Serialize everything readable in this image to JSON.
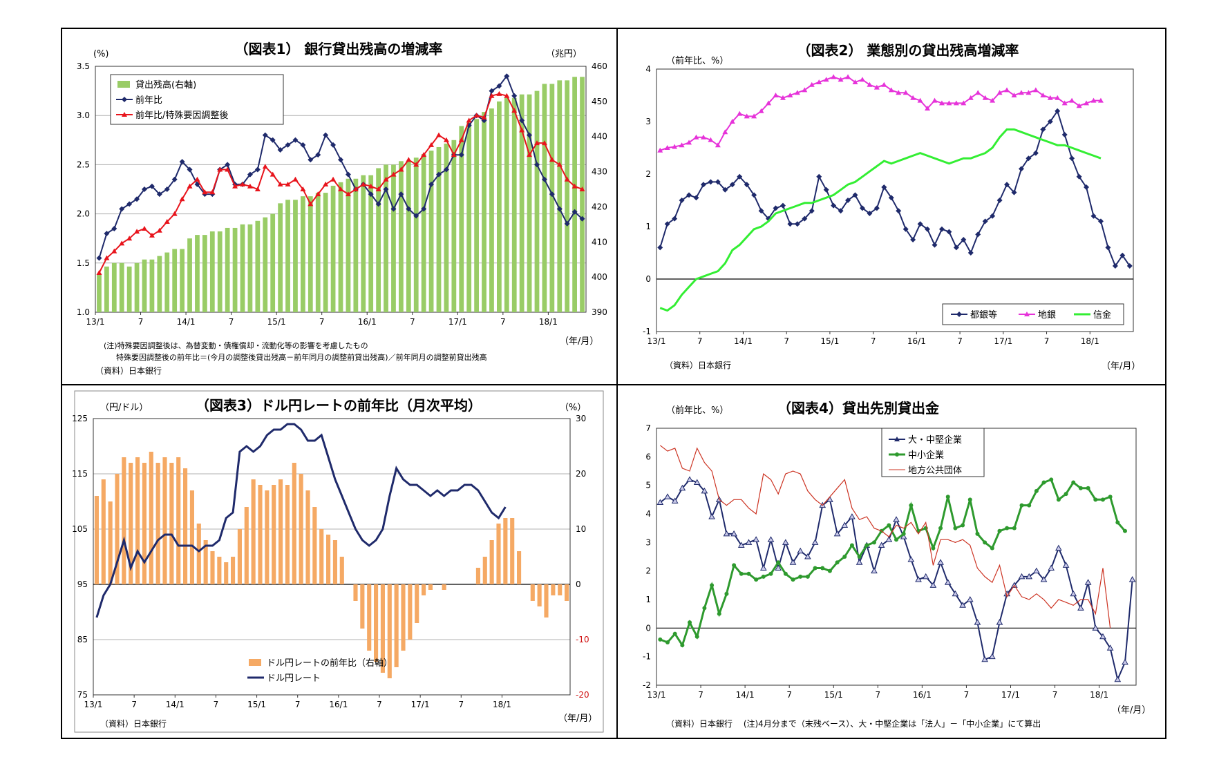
{
  "chart_data": [
    {
      "type": "bar+line",
      "title": "（図表1） 銀行貸出残高の増減率",
      "left_unit": "(%)",
      "right_unit": "（兆円）",
      "x_unit": "（年/月）",
      "ylim_left": [
        1.0,
        3.5
      ],
      "ylim_right": [
        390,
        460
      ],
      "yticks_left": [
        "1.0",
        "1.5",
        "2.0",
        "2.5",
        "3.0",
        "3.5"
      ],
      "yticks_right": [
        "390",
        "400",
        "410",
        "420",
        "430",
        "440",
        "450",
        "460"
      ],
      "xtick_labels": [
        "13/1",
        "7",
        "14/1",
        "7",
        "15/1",
        "7",
        "16/1",
        "7",
        "17/1",
        "7",
        "18/1"
      ],
      "series": [
        {
          "name": "貸出残高(右軸)",
          "kind": "bar",
          "axis": "right",
          "color": "#99cc66",
          "values": [
            401,
            403,
            404,
            404,
            403,
            404,
            405,
            405,
            406,
            407,
            408,
            408,
            411,
            412,
            412,
            413,
            413,
            414,
            414,
            415,
            415,
            416,
            417,
            418,
            421,
            422,
            422,
            423,
            423,
            424,
            424,
            426,
            427,
            428,
            428,
            429,
            429,
            431,
            432,
            432,
            433,
            433,
            434,
            435,
            436,
            437,
            438,
            439,
            443,
            444,
            445,
            447,
            448,
            450,
            451,
            451,
            452,
            452,
            453,
            455,
            455,
            456,
            456,
            457,
            457
          ],
          "note": "approximated from figure"
        },
        {
          "name": "前年比",
          "kind": "line",
          "axis": "left",
          "color": "#1f2a6b",
          "marker": "diamond",
          "values": [
            1.55,
            1.8,
            1.85,
            2.05,
            2.1,
            2.15,
            2.25,
            2.28,
            2.2,
            2.25,
            2.35,
            2.53,
            2.45,
            2.3,
            2.2,
            2.2,
            2.45,
            2.5,
            2.3,
            2.3,
            2.4,
            2.45,
            2.8,
            2.75,
            2.65,
            2.7,
            2.75,
            2.7,
            2.55,
            2.6,
            2.8,
            2.7,
            2.55,
            2.4,
            2.25,
            2.3,
            2.2,
            2.1,
            2.25,
            2.05,
            2.2,
            2.05,
            1.98,
            2.05,
            2.3,
            2.4,
            2.45,
            2.6,
            2.6,
            2.9,
            3.0,
            2.95,
            3.25,
            3.3,
            3.4,
            3.2,
            2.95,
            2.8,
            2.5,
            2.35,
            2.2,
            2.05,
            1.9,
            2.02,
            1.95
          ]
        },
        {
          "name": "前年比/特殊要因調整後",
          "kind": "line",
          "axis": "left",
          "color": "#e8141c",
          "marker": "triangle",
          "values": [
            1.4,
            1.55,
            1.62,
            1.7,
            1.75,
            1.82,
            1.85,
            1.78,
            1.83,
            1.92,
            2.0,
            2.15,
            2.28,
            2.35,
            2.22,
            2.22,
            2.45,
            2.45,
            2.28,
            2.3,
            2.28,
            2.25,
            2.48,
            2.4,
            2.3,
            2.3,
            2.35,
            2.25,
            2.1,
            2.2,
            2.3,
            2.35,
            2.25,
            2.2,
            2.25,
            2.3,
            2.28,
            2.25,
            2.35,
            2.4,
            2.45,
            2.55,
            2.5,
            2.6,
            2.7,
            2.8,
            2.75,
            2.6,
            2.75,
            2.95,
            3.0,
            2.98,
            3.2,
            3.22,
            3.2,
            3.05,
            2.85,
            2.6,
            2.72,
            2.72,
            2.55,
            2.5,
            2.35,
            2.28,
            2.25
          ]
        }
      ],
      "notes": [
        "(注)特殊要因調整後は、為替変動・債権償却・流動化等の影響を考慮したもの",
        "特殊要因調整後の前年比＝(今月の調整後貸出残高－前年同月の調整前貸出残高)／前年同月の調整前貸出残高",
        "（資料）日本銀行"
      ]
    },
    {
      "type": "line",
      "title": "（図表2） 業態別の貸出残高増減率",
      "y_unit": "（前年比、%）",
      "x_unit": "（年/月）",
      "source": "（資料）日本銀行",
      "ylim": [
        -1,
        4
      ],
      "yticks": [
        "-1",
        "0",
        "1",
        "2",
        "3",
        "4"
      ],
      "xtick_labels": [
        "13/1",
        "7",
        "14/1",
        "7",
        "15/1",
        "7",
        "16/1",
        "7",
        "17/1",
        "7",
        "18/1"
      ],
      "series": [
        {
          "name": "都銀等",
          "color": "#1f2a6b",
          "marker": "diamond",
          "values": [
            0.6,
            1.05,
            1.15,
            1.5,
            1.6,
            1.55,
            1.8,
            1.85,
            1.85,
            1.7,
            1.8,
            1.95,
            1.8,
            1.6,
            1.3,
            1.15,
            1.35,
            1.4,
            1.05,
            1.05,
            1.15,
            1.3,
            1.95,
            1.7,
            1.4,
            1.3,
            1.5,
            1.6,
            1.35,
            1.25,
            1.35,
            1.75,
            1.55,
            1.3,
            0.95,
            0.75,
            1.05,
            0.95,
            0.65,
            0.95,
            0.9,
            0.6,
            0.75,
            0.5,
            0.85,
            1.1,
            1.2,
            1.5,
            1.8,
            1.65,
            2.1,
            2.3,
            2.4,
            2.85,
            3.0,
            3.2,
            2.75,
            2.3,
            1.95,
            1.75,
            1.2,
            1.1,
            0.6,
            0.25,
            0.45,
            0.25
          ]
        },
        {
          "name": "地銀",
          "color": "#e633d9",
          "marker": "triangle",
          "values": [
            2.45,
            2.5,
            2.52,
            2.55,
            2.6,
            2.7,
            2.7,
            2.65,
            2.55,
            2.8,
            3.0,
            3.15,
            3.1,
            3.1,
            3.2,
            3.35,
            3.5,
            3.45,
            3.5,
            3.55,
            3.6,
            3.7,
            3.75,
            3.8,
            3.85,
            3.8,
            3.85,
            3.75,
            3.8,
            3.7,
            3.65,
            3.7,
            3.6,
            3.55,
            3.55,
            3.45,
            3.4,
            3.25,
            3.4,
            3.35,
            3.35,
            3.35,
            3.35,
            3.45,
            3.55,
            3.45,
            3.4,
            3.55,
            3.6,
            3.5,
            3.55,
            3.55,
            3.6,
            3.5,
            3.45,
            3.45,
            3.35,
            3.4,
            3.3,
            3.35,
            3.4,
            3.4
          ]
        },
        {
          "name": "信金",
          "color": "#33ee33",
          "marker": "none",
          "values": [
            -0.55,
            -0.6,
            -0.5,
            -0.3,
            -0.15,
            0.0,
            0.05,
            0.1,
            0.15,
            0.3,
            0.55,
            0.65,
            0.8,
            0.95,
            1.0,
            1.1,
            1.25,
            1.3,
            1.35,
            1.4,
            1.45,
            1.45,
            1.5,
            1.55,
            1.6,
            1.7,
            1.8,
            1.85,
            1.95,
            2.05,
            2.15,
            2.25,
            2.2,
            2.25,
            2.3,
            2.35,
            2.4,
            2.35,
            2.3,
            2.25,
            2.2,
            2.25,
            2.3,
            2.3,
            2.35,
            2.4,
            2.5,
            2.7,
            2.85,
            2.85,
            2.8,
            2.75,
            2.7,
            2.65,
            2.6,
            2.55,
            2.55,
            2.5,
            2.45,
            2.4,
            2.35,
            2.3
          ]
        }
      ]
    },
    {
      "type": "bar+line",
      "title": "（図表3）ドル円レートの前年比（月次平均）",
      "left_unit": "（円/ドル）",
      "right_unit": "（%）",
      "x_unit": "（年/月）",
      "source": "（資料）日本銀行",
      "ylim_left": [
        75,
        125
      ],
      "ylim_right": [
        -20,
        30
      ],
      "yticks_left": [
        "75",
        "85",
        "95",
        "105",
        "115",
        "125"
      ],
      "yticks_right": [
        "-20",
        "-10",
        "0",
        "10",
        "20",
        "30"
      ],
      "xtick_labels": [
        "13/1",
        "7",
        "14/1",
        "7",
        "15/1",
        "7",
        "16/1",
        "7",
        "17/1",
        "7",
        "18/1"
      ],
      "series": [
        {
          "name": "ドル円レートの前年比（右軸）",
          "kind": "bar",
          "axis": "right",
          "color": "#f5a964",
          "values": [
            16,
            19,
            15,
            20,
            23,
            22,
            23,
            22,
            24,
            22,
            23,
            22,
            23,
            21,
            17,
            11,
            8,
            6,
            5,
            4,
            5,
            10,
            14,
            19,
            18,
            17,
            18,
            19,
            18,
            22,
            20,
            17,
            14,
            10,
            9,
            8,
            5,
            0,
            -3,
            -8,
            -12,
            -14,
            -16,
            -17,
            -15,
            -12,
            -10,
            -7,
            -2,
            -1,
            0,
            -1,
            0,
            0,
            0,
            0,
            3,
            5,
            8,
            11,
            12,
            12,
            6,
            0,
            -3,
            -4,
            -6,
            -2,
            -2,
            -3
          ]
        },
        {
          "name": "ドル円レート",
          "kind": "line",
          "axis": "left",
          "color": "#1f2a6b",
          "values": [
            89,
            93,
            95,
            99,
            103,
            98,
            101,
            99,
            101,
            103,
            104,
            104,
            102,
            102,
            102,
            101,
            102,
            102,
            103,
            107,
            108,
            119,
            120,
            119,
            120,
            122,
            123,
            123,
            124,
            124,
            123,
            121,
            121,
            122,
            118,
            114,
            111,
            108,
            105,
            103,
            102,
            103,
            105,
            111,
            116,
            114,
            113,
            113,
            112,
            111,
            112,
            111,
            112,
            112,
            113,
            113,
            112,
            110,
            108,
            107,
            109
          ]
        }
      ]
    },
    {
      "type": "line",
      "title": "（図表4）貸出先別貸出金",
      "y_unit": "（前年比、%）",
      "x_unit": "（年/月）",
      "source": "（資料）日本銀行　 (注)4月分まで（末残ベース）、大・中堅企業は「法人」－「中小企業」にて算出",
      "ylim": [
        -2,
        7
      ],
      "yticks": [
        "-2",
        "-1",
        "0",
        "1",
        "2",
        "3",
        "4",
        "5",
        "6",
        "7"
      ],
      "xtick_labels": [
        "13/1",
        "7",
        "14/1",
        "7",
        "15/1",
        "7",
        "16/1",
        "7",
        "17/1",
        "7",
        "18/1"
      ],
      "series": [
        {
          "name": "大・中堅企業",
          "color": "#1f2a6b",
          "marker": "triangle",
          "values": [
            4.4,
            4.6,
            4.45,
            4.9,
            5.2,
            5.1,
            4.8,
            3.9,
            4.5,
            3.3,
            3.3,
            2.9,
            3.0,
            3.1,
            2.1,
            3.1,
            2.1,
            3.0,
            2.3,
            2.7,
            2.5,
            3.0,
            4.3,
            4.5,
            3.3,
            3.6,
            3.9,
            2.3,
            2.9,
            2.0,
            2.9,
            3.1,
            3.8,
            3.2,
            2.4,
            1.7,
            1.8,
            1.5,
            2.3,
            1.6,
            1.2,
            0.8,
            1.0,
            0.2,
            -1.1,
            -1.0,
            0.2,
            1.2,
            1.5,
            1.8,
            1.8,
            2.0,
            1.7,
            2.1,
            2.8,
            2.2,
            1.2,
            0.7,
            1.6,
            0.0,
            -0.3,
            -0.7,
            -1.8,
            -1.2,
            1.7
          ]
        },
        {
          "name": "中小企業",
          "color": "#2e9a2e",
          "marker": "circle",
          "values": [
            -0.4,
            -0.5,
            -0.2,
            -0.6,
            0.2,
            -0.3,
            0.7,
            1.5,
            0.5,
            1.2,
            2.2,
            1.9,
            1.9,
            1.7,
            1.8,
            1.9,
            2.3,
            1.9,
            1.7,
            1.8,
            1.8,
            2.1,
            2.1,
            2.0,
            2.3,
            2.5,
            2.9,
            2.5,
            2.9,
            3.0,
            3.4,
            3.6,
            3.1,
            3.3,
            4.3,
            3.4,
            3.5,
            2.8,
            3.5,
            4.6,
            3.5,
            3.6,
            4.5,
            3.3,
            3.0,
            2.8,
            3.4,
            3.5,
            3.5,
            4.3,
            4.3,
            4.8,
            5.1,
            5.2,
            4.5,
            4.7,
            5.1,
            4.9,
            4.9,
            4.5,
            4.5,
            4.6,
            3.7,
            3.4
          ]
        },
        {
          "name": "地方公共団体",
          "color": "#cc3322",
          "marker": "none",
          "values": [
            6.4,
            6.2,
            6.3,
            5.6,
            5.5,
            6.3,
            5.8,
            5.5,
            4.5,
            4.3,
            4.5,
            4.5,
            4.2,
            4.0,
            5.4,
            5.2,
            4.7,
            5.4,
            5.5,
            5.4,
            4.8,
            4.5,
            4.3,
            4.6,
            4.9,
            5.2,
            4.2,
            3.8,
            3.9,
            3.5,
            3.4,
            3.2,
            3.6,
            3.5,
            3.7,
            3.3,
            3.7,
            2.2,
            3.1,
            3.1,
            3.0,
            3.1,
            2.9,
            2.1,
            1.8,
            1.6,
            2.2,
            1.1,
            1.5,
            1.1,
            1.0,
            1.2,
            1.0,
            0.7,
            1.0,
            0.9,
            0.8,
            1.0,
            1.0,
            0.5,
            2.1,
            0.0
          ]
        }
      ]
    }
  ]
}
